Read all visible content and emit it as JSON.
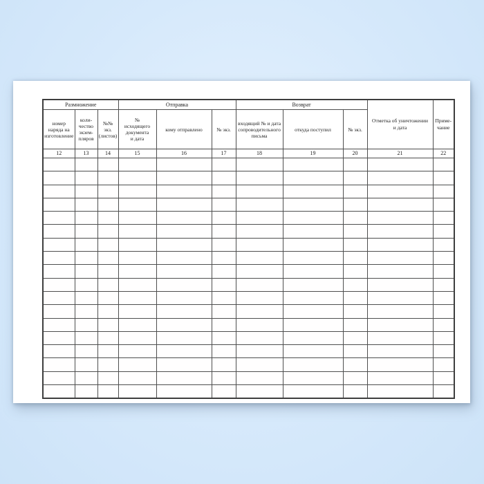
{
  "theme": {
    "backdrop_color": "#d6e9fb",
    "paper_color": "#ffffff",
    "line_color": "#4d4d4d",
    "text_color": "#1f1f1f"
  },
  "table": {
    "groups": [
      {
        "label": "Размножение",
        "span": 3
      },
      {
        "label": "Отправка",
        "span": 3
      },
      {
        "label": "Возврат",
        "span": 3
      }
    ],
    "columns": [
      {
        "number": "12",
        "label": "номер\nнаряда на\nизготовление"
      },
      {
        "number": "13",
        "label": "коли-\nчество\nэкзем-\nпляров"
      },
      {
        "number": "14",
        "label": "№№ экз.\n(листов)"
      },
      {
        "number": "15",
        "label": "№\nисходящего\nдокумента\nи дата"
      },
      {
        "number": "16",
        "label": "кому отправлено"
      },
      {
        "number": "17",
        "label": "№ экз."
      },
      {
        "number": "18",
        "label": "входящий № и дата\nсопроводительного\nписьма"
      },
      {
        "number": "19",
        "label": "откуда поступил"
      },
      {
        "number": "20",
        "label": "№ экз."
      },
      {
        "number": "21",
        "label": "Отметка об уничтожении\nи дата"
      },
      {
        "number": "22",
        "label": "Приме-\nчание"
      }
    ],
    "data_row_count": 18,
    "cell_values": []
  }
}
